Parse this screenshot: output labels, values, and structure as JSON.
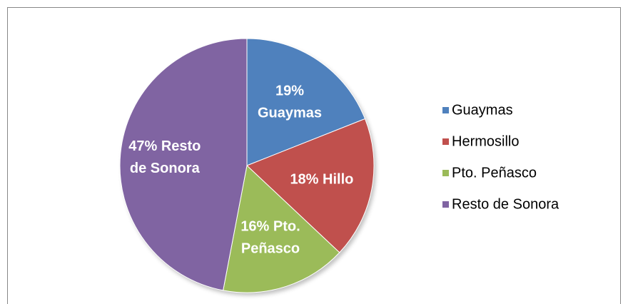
{
  "chart_data": {
    "type": "pie",
    "categories": [
      "Guaymas",
      "Hermosillo",
      "Pto. Peñasco",
      "Resto de Sonora"
    ],
    "values": [
      19,
      18,
      16,
      47
    ],
    "value_labels": [
      [
        "19%",
        "Guaymas"
      ],
      [
        "18% Hillo"
      ],
      [
        "16% Pto.",
        "Peñasco"
      ],
      [
        "47% Resto",
        "de Sonora"
      ]
    ],
    "colors": [
      "#4f81bd",
      "#c0504d",
      "#9bbb59",
      "#8064a2"
    ],
    "legend": "right"
  }
}
